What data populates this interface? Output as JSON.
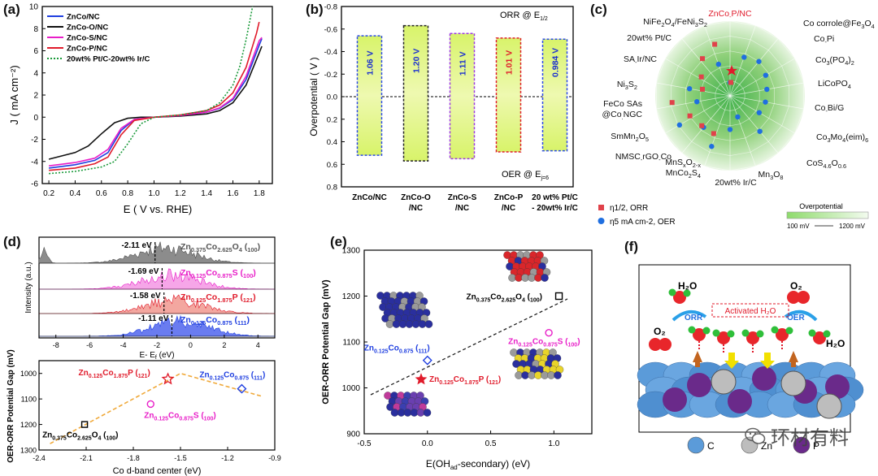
{
  "labels": {
    "a": "(a)",
    "b": "(b)",
    "c": "(c)",
    "d": "(d)",
    "e": "(e)",
    "f": "(f)"
  },
  "panel_a": {
    "xlabel": "E ( V vs. RHE)",
    "ylabel": "J ( mA cm⁻²)",
    "legend": [
      "ZnCo/NC",
      "ZnCo-O/NC",
      "ZnCo-S/NC",
      "ZnCo-P/NC",
      "20wt% Pt/C-20wt% Ir/C"
    ],
    "colors": [
      "#1f3fe0",
      "#111111",
      "#e81ec8",
      "#e01b2b",
      "#1a9a3a"
    ],
    "xticks": [
      "0.2",
      "0.4",
      "0.6",
      "0.8",
      "1.0",
      "1.2",
      "1.4",
      "1.6",
      "1.8"
    ],
    "yticks": [
      "10",
      "8",
      "6",
      "4",
      "2",
      "0",
      "-2",
      "-4",
      "-6"
    ]
  },
  "panel_b": {
    "ylabel": "Overpotential ( V )",
    "orr_label": "ORR @ E",
    "orr_sub": "1/2",
    "oer_label": "OER @ E",
    "oer_sub": "j=6",
    "yticks": [
      "-0.8",
      "-0.6",
      "-0.4",
      "-0.2",
      "0.0",
      "0.2",
      "0.4",
      "0.6",
      "0.8"
    ],
    "categories": [
      "ZnCo/NC",
      "ZnCo-O/NC",
      "ZnCo-S/NC",
      "ZnCo-P/NC",
      "20 wt% Pt/C - 20wt% Ir/C"
    ],
    "cat_lines": [
      [
        "ZnCo/NC"
      ],
      [
        "ZnCo-O",
        "/NC"
      ],
      [
        "ZnCo-S",
        "/NC"
      ],
      [
        "ZnCo-P",
        "/NC"
      ],
      [
        "20 wt% Pt/C",
        "- 20wt% Ir/C"
      ]
    ],
    "values": [
      "1.06 V",
      "1.20 V",
      "1.11 V",
      "1.01 V",
      "0.984 V"
    ],
    "value_colors": [
      "#1a2fd0",
      "#1a2fd0",
      "#1a2fd0",
      "#e01b2b",
      "#1a2fd0"
    ],
    "border_colors": [
      "#2a49e8",
      "#222222",
      "#9b3ae0",
      "#e01b2b",
      "#2a49e8"
    ]
  },
  "panel_c": {
    "center_label": "ZnCo-P/NC",
    "spokes": [
      "ZnCo-P/NC",
      "Co corrole@Fe3O4",
      "Co-Pi",
      "Co3(PO4)2",
      "LiCoPO4",
      "Co-Bi/G",
      "Co3Mo4(eim)6",
      "CoS4.6O0.6",
      "Mn3O8",
      "20wt% Ir/C",
      "MnSxO2-x/MnCo2S4",
      "NMSC-rGO-Co",
      "SmMn2O5",
      "FeCo SAs @Co.NGC",
      "Ni3S2",
      "SA-Ir/NC",
      "20wt% Pt/C",
      "NiFe2O4/FeNi3S2"
    ],
    "legend_orr": "η1/2, ORR",
    "legend_oer": "η5 mA cm-2, OER",
    "bar_title": "Overpotential",
    "bar_min": "100 mV",
    "bar_max": "1200 mV"
  },
  "panel_d": {
    "dos_xlabel": "E- E_f (eV)",
    "dos_ylabel": "Intensity (a.u.)",
    "dos_xticks": [
      "-8",
      "-6",
      "-4",
      "-2",
      "0",
      "2",
      "4"
    ],
    "dos_rows": [
      {
        "center": "-2.11 eV",
        "name": "Zn0.375Co2.625O4 (100)",
        "color": "#555555"
      },
      {
        "center": "-1.69 eV",
        "name": "Zn0.125Co0.875S (100)",
        "color": "#e81ec8"
      },
      {
        "center": "-1.58 eV",
        "name": "Zn0.125Co1.875P (121)",
        "color": "#e01b2b"
      },
      {
        "center": "-1.11 eV",
        "name": "Zn0.125Co0.875 (111)",
        "color": "#1f3fe0"
      }
    ],
    "scatter_xlabel": "Co d-band center (eV)",
    "scatter_ylabel": "OER-ORR Potential Gap (mV)",
    "scatter_xticks": [
      "-2.4",
      "-2.1",
      "-1.8",
      "-1.5",
      "-1.2",
      "-0.9"
    ],
    "scatter_yticks": [
      "1000",
      "1100",
      "1200",
      "1300"
    ]
  },
  "panel_e": {
    "xlabel": "E(OH_ad-secondary) (eV)",
    "ylabel": "OER-ORR Potential Gap (mV)",
    "xticks": [
      "-0.5",
      "0.0",
      "0.5",
      "1.0"
    ],
    "yticks": [
      "900",
      "1000",
      "1100",
      "1200",
      "1300"
    ]
  },
  "panel_f": {
    "h2o": "H₂O",
    "o2": "O₂",
    "orr": "ORR",
    "oer": "OER",
    "activated": "Activated H₂O",
    "legend": [
      "C",
      "Zn",
      "P"
    ]
  },
  "watermark": "环材有料",
  "chart_data": [
    {
      "type": "line",
      "title": "",
      "xlabel": "E ( V vs. RHE)",
      "ylabel": "J ( mA cm-2)",
      "xlim": [
        0.15,
        1.9
      ],
      "ylim": [
        -6,
        10
      ],
      "series": [
        {
          "name": "ZnCo/NC",
          "x": [
            0.2,
            0.4,
            0.55,
            0.65,
            0.75,
            0.85,
            1.0,
            1.2,
            1.4,
            1.5,
            1.6,
            1.7,
            1.8,
            1.82
          ],
          "y": [
            -4.6,
            -4.3,
            -3.9,
            -3.2,
            -1.2,
            -0.2,
            0.0,
            0.15,
            0.45,
            0.8,
            1.6,
            3.4,
            6.5,
            7.1
          ]
        },
        {
          "name": "ZnCo-O/NC",
          "x": [
            0.2,
            0.4,
            0.5,
            0.6,
            0.7,
            0.8,
            0.9,
            1.0,
            1.2,
            1.4,
            1.5,
            1.6,
            1.7,
            1.8,
            1.82
          ],
          "y": [
            -3.8,
            -3.2,
            -2.6,
            -1.5,
            -0.5,
            -0.1,
            0.0,
            0.0,
            0.1,
            0.3,
            0.6,
            1.3,
            2.9,
            5.8,
            6.4
          ]
        },
        {
          "name": "ZnCo-S/NC",
          "x": [
            0.2,
            0.4,
            0.55,
            0.65,
            0.75,
            0.85,
            1.0,
            1.2,
            1.4,
            1.5,
            1.6,
            1.7,
            1.8,
            1.82
          ],
          "y": [
            -4.4,
            -4.1,
            -3.7,
            -2.9,
            -1.0,
            -0.2,
            0.0,
            0.15,
            0.45,
            0.85,
            1.7,
            3.7,
            6.9,
            7.2
          ]
        },
        {
          "name": "ZnCo-P/NC",
          "x": [
            0.2,
            0.4,
            0.55,
            0.65,
            0.75,
            0.85,
            1.0,
            1.2,
            1.4,
            1.5,
            1.6,
            1.7,
            1.78,
            1.8
          ],
          "y": [
            -4.8,
            -4.6,
            -4.2,
            -3.6,
            -1.6,
            -0.3,
            0.0,
            0.2,
            0.6,
            1.1,
            2.2,
            4.5,
            7.6,
            8.6
          ]
        },
        {
          "name": "20wt% Pt/C-20wt% Ir/C",
          "x": [
            0.2,
            0.4,
            0.6,
            0.7,
            0.8,
            0.9,
            1.0,
            1.2,
            1.4,
            1.5,
            1.6,
            1.65,
            1.7,
            1.75
          ],
          "y": [
            -5.1,
            -4.9,
            -4.5,
            -4.0,
            -2.4,
            -0.6,
            0.0,
            0.2,
            0.6,
            1.3,
            2.9,
            4.5,
            7.0,
            10.0
          ]
        }
      ]
    },
    {
      "type": "bar",
      "title": "",
      "ylabel": "Overpotential ( V )",
      "ylim": [
        -0.8,
        0.8
      ],
      "categories": [
        "ZnCo/NC",
        "ZnCo-O/NC",
        "ZnCo-S/NC",
        "ZnCo-P/NC",
        "20 wt% Pt/C - 20wt% Ir/C"
      ],
      "series": [
        {
          "name": "ORR @ E1/2",
          "values": [
            -0.54,
            -0.63,
            -0.56,
            -0.52,
            -0.51
          ]
        },
        {
          "name": "OER @ Ej=6",
          "values": [
            0.52,
            0.57,
            0.55,
            0.49,
            0.48
          ]
        }
      ],
      "annotations": [
        "1.06 V",
        "1.20 V",
        "1.11 V",
        "1.01 V",
        "0.984 V"
      ]
    },
    {
      "type": "scatter",
      "title": "",
      "xlabel": "Co d-band center (eV)",
      "ylabel": "OER-ORR Potential Gap (mV)",
      "xlim": [
        -2.4,
        -0.9
      ],
      "ylim": [
        1300,
        950
      ],
      "points": [
        {
          "label": "Zn0.375Co2.625O4 (100)",
          "x": -2.11,
          "y": 1200
        },
        {
          "label": "Zn0.125Co0.875S (100)",
          "x": -1.69,
          "y": 1120
        },
        {
          "label": "Zn0.125Co1.875P (121)",
          "x": -1.58,
          "y": 1020
        },
        {
          "label": "Zn0.125Co0.875 (111)",
          "x": -1.11,
          "y": 1060
        }
      ]
    },
    {
      "type": "scatter",
      "title": "",
      "xlabel": "E(OHad-secondary) (eV)",
      "ylabel": "OER-ORR Potential Gap (mV)",
      "xlim": [
        -0.5,
        1.3
      ],
      "ylim": [
        900,
        1300
      ],
      "points": [
        {
          "label": "Zn0.375Co2.625O4 (100)",
          "x": 1.04,
          "y": 1200
        },
        {
          "label": "Zn0.125Co0.875S (100)",
          "x": 0.96,
          "y": 1120
        },
        {
          "label": "Zn0.125Co1.875P (121)",
          "x": -0.05,
          "y": 1020
        },
        {
          "label": "Zn0.125Co0.875 (111)",
          "x": 0.0,
          "y": 1060
        }
      ]
    }
  ]
}
